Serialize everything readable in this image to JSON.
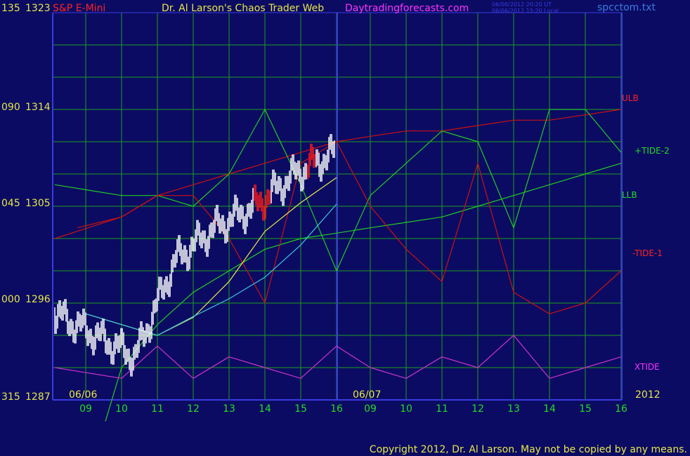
{
  "header": {
    "symbol": "S&P E-Mini",
    "title": "Dr. Al Larson's Chaos Trader Web",
    "site": "Daytradingforecasts.com",
    "stamp_ut": "06/06/2012 20:20 UT",
    "stamp_local": "06/06/2012 15:20 Local",
    "file": "spcctom.txt"
  },
  "footer": {
    "copyright": "Copyright 2012, Dr. Al Larson.  May not be copied by any means."
  },
  "colors": {
    "background": "#0b0b63",
    "grid": "#1e9c1e",
    "axis": "#3a3ae0",
    "price_bar": "#ffffff",
    "price_bar_down": "#ff1a1a",
    "ulb": "#cc1111",
    "llb": "#22cc22",
    "tide1": "#cc1111",
    "tide2": "#22cc22",
    "xtide": "#cc33cc",
    "ma_yellow": "#e8e84a",
    "ma_cyan": "#3bc6e0",
    "green_text": "#22dd22",
    "yellow_text": "#e6e64a",
    "magenta_text": "#ff33ff",
    "red_text": "#ff2222"
  },
  "chart_data": {
    "type": "line",
    "y_axis_labels": [
      {
        "left": "135",
        "right": "1323",
        "value": 1323
      },
      {
        "left": "090",
        "right": "1314",
        "value": 1314
      },
      {
        "left": "045",
        "right": "1305",
        "value": 1305
      },
      {
        "left": "000",
        "right": "1296",
        "value": 1296
      },
      {
        "left": "315",
        "right": "1287",
        "value": 1287
      }
    ],
    "ylim": [
      1287,
      1323
    ],
    "x_tick_labels": [
      "09",
      "10",
      "11",
      "12",
      "13",
      "14",
      "15",
      "16",
      "09",
      "10",
      "11",
      "12",
      "13",
      "14",
      "15",
      "16"
    ],
    "date_labels": [
      "06/06",
      "06/07"
    ],
    "year_label": "2012",
    "series": [
      {
        "name": "ULB",
        "values": [
          1303,
          1304,
          1306,
          1307,
          1308,
          1309,
          1310,
          1311,
          1311.5,
          1312,
          1312,
          1312.5,
          1313,
          1313,
          1313.5,
          1314
        ]
      },
      {
        "name": "+TIDE-2",
        "values": [
          1307,
          1306,
          1306,
          1305,
          1308,
          1314,
          1307,
          1299,
          1306,
          1309,
          1312,
          1311,
          1303,
          1314,
          1314,
          1310
        ]
      },
      {
        "name": "LLB",
        "values": [
          1285,
          1290,
          1294,
          1297,
          1299,
          1301,
          1302,
          1302.5,
          1303,
          1303.5,
          1304,
          1305,
          1306,
          1307,
          1308,
          1309
        ]
      },
      {
        "name": "-TIDE-1",
        "values": [
          1302,
          1304,
          1306,
          1306,
          1302,
          1296,
          1309,
          1311,
          1305,
          1301,
          1298,
          1309,
          1297,
          1295,
          1296,
          1299
        ]
      },
      {
        "name": "XTIDE",
        "values": [
          1290,
          1289,
          1292,
          1289,
          1291,
          1290,
          1289,
          1292,
          1290,
          1289,
          1291,
          1290,
          1293,
          1289,
          1290,
          1291
        ]
      }
    ],
    "price_close": [
      1295,
      1293,
      1291,
      1300,
      1303,
      1305,
      1308,
      1310,
      1308,
      1307,
      1306,
      1307.5,
      1308,
      1307,
      1314,
      1316
    ],
    "right_labels": [
      "ULB",
      "+TIDE-2",
      "LLB",
      "-TIDE-1",
      "XTIDE"
    ]
  }
}
